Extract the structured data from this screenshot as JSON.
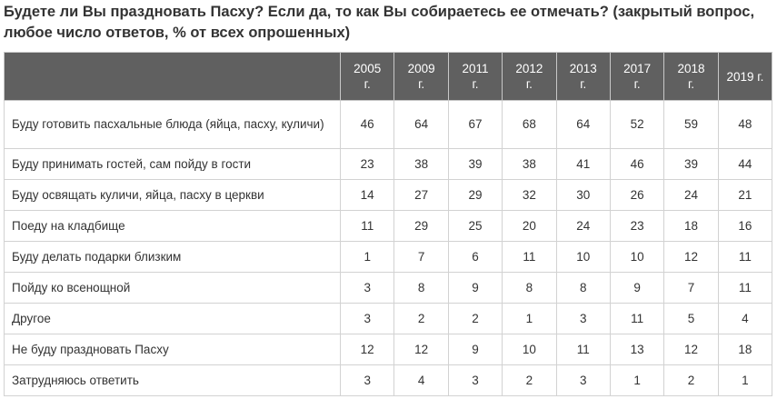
{
  "title": {
    "line1": "Будете ли Вы праздновать Пасху? Если да, то как Вы собираетесь ее отмечать? (закрытый вопрос,",
    "line2": "любое число ответов, % от всех опрошенных)"
  },
  "table": {
    "years": [
      {
        "year": "2005",
        "suffix": "г."
      },
      {
        "year": "2009",
        "suffix": "г."
      },
      {
        "year": "2011",
        "suffix": "г."
      },
      {
        "year": "2012",
        "suffix": "г."
      },
      {
        "year": "2013",
        "suffix": "г."
      },
      {
        "year": "2017",
        "suffix": "г."
      },
      {
        "year": "2018",
        "suffix": "г."
      },
      {
        "year": "2019 г.",
        "suffix": ""
      }
    ],
    "rows": [
      {
        "label": "Буду готовить пасхальные блюда (яйца, пасху, куличи)",
        "values": [
          "46",
          "64",
          "67",
          "68",
          "64",
          "52",
          "59",
          "48"
        ]
      },
      {
        "label": "Буду принимать гостей, сам пойду в гости",
        "values": [
          "23",
          "38",
          "39",
          "38",
          "41",
          "46",
          "39",
          "44"
        ]
      },
      {
        "label": "Буду освящать куличи, яйца, пасху в церкви",
        "values": [
          "14",
          "27",
          "29",
          "32",
          "30",
          "26",
          "24",
          "21"
        ]
      },
      {
        "label": "Поеду на кладбище",
        "values": [
          "11",
          "29",
          "25",
          "20",
          "24",
          "23",
          "18",
          "16"
        ]
      },
      {
        "label": "Буду делать подарки близким",
        "values": [
          "1",
          "7",
          "6",
          "11",
          "10",
          "10",
          "12",
          "11"
        ]
      },
      {
        "label": "Пойду ко всенощной",
        "values": [
          "3",
          "8",
          "9",
          "8",
          "8",
          "9",
          "7",
          "11"
        ]
      },
      {
        "label": "Другое",
        "values": [
          "3",
          "2",
          "2",
          "1",
          "3",
          "11",
          "5",
          "4"
        ]
      },
      {
        "label": "Не буду праздновать Пасху",
        "values": [
          "12",
          "12",
          "9",
          "10",
          "11",
          "13",
          "12",
          "18"
        ]
      },
      {
        "label": "Затрудняюсь ответить",
        "values": [
          "3",
          "4",
          "3",
          "2",
          "3",
          "1",
          "2",
          "1"
        ]
      }
    ]
  },
  "colors": {
    "header_bg": "#606060",
    "header_text": "#ffffff",
    "border": "#d2d2d2",
    "text": "#333333"
  }
}
